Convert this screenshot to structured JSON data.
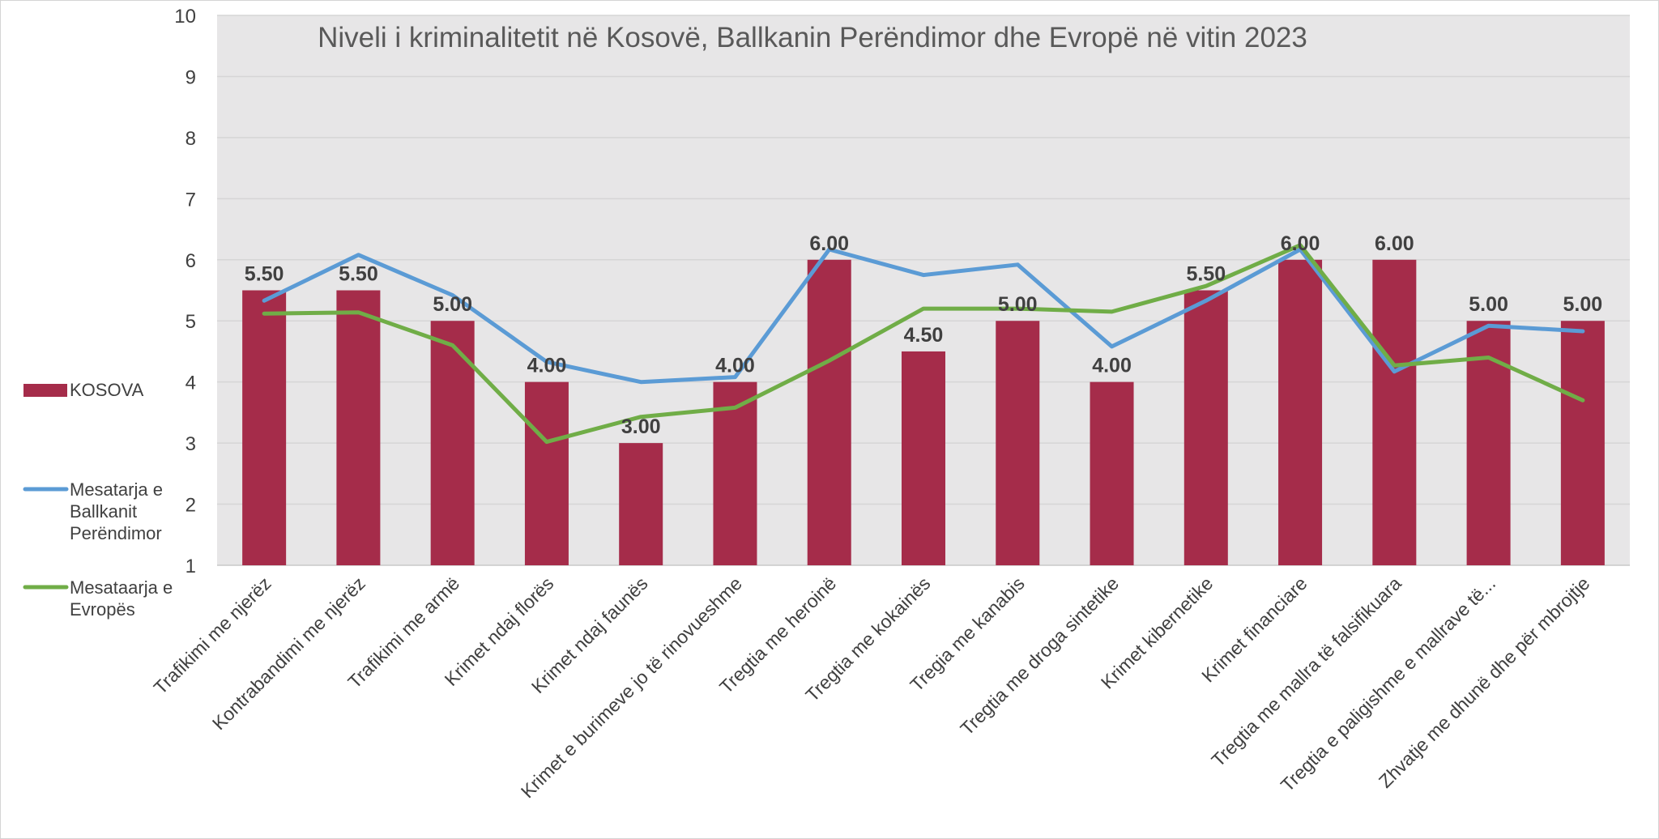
{
  "chart_data": {
    "type": "bar",
    "title": "Niveli i kriminalitetit në Kosovë, Ballkanin Perëndimor dhe Evropë në vitin 2023",
    "xlabel": "",
    "ylabel": "",
    "ylim": [
      1,
      10
    ],
    "yticks": [
      1,
      2,
      3,
      4,
      5,
      6,
      7,
      8,
      9,
      10
    ],
    "grid": true,
    "legend_position": "left",
    "categories": [
      "Trafikimi me njerëz",
      "Kontrabandimi me njerëz",
      "Trafikimi me armë",
      "Krimet ndaj florës",
      "Krimet ndaj faunës",
      "Krimet e burimeve jo të rinovueshme",
      "Tregtia me heroinë",
      "Tregtia me kokainës",
      "Tregia me kanabis",
      "Tregtia me droga sintetike",
      "Krimet kibernetike",
      "Krimet financiare",
      "Tregtia me mallra të falsifikuara",
      "Tregtia e paligishme e mallrave të...",
      "Zhvatje me dhunë dhe për mbrojtje"
    ],
    "series": [
      {
        "name": "KOSOVA",
        "type": "bar",
        "color": "#a52c4a",
        "values": [
          5.5,
          5.5,
          5.0,
          4.0,
          3.0,
          4.0,
          6.0,
          4.5,
          5.0,
          4.0,
          5.5,
          6.0,
          6.0,
          5.0,
          5.0
        ],
        "labels": [
          "5.50",
          "5.50",
          "5.00",
          "4.00",
          "3.00",
          "4.00",
          "6.00",
          "4.50",
          "5.00",
          "4.00",
          "5.50",
          "6.00",
          "6.00",
          "5.00",
          "5.00"
        ]
      },
      {
        "name": "Mesatarja e Ballkanit Perëndimor",
        "legend_lines": [
          "Mesatarja e",
          "Ballkanit",
          "Perëndimor"
        ],
        "type": "line",
        "color": "#5b9bd5",
        "values": [
          5.33,
          6.08,
          5.42,
          4.33,
          4.0,
          4.08,
          6.17,
          5.75,
          5.92,
          4.58,
          5.33,
          6.17,
          4.17,
          4.92,
          4.83
        ]
      },
      {
        "name": "Mesataarja e Evropës",
        "legend_lines": [
          "Mesataarja e",
          "Evropës"
        ],
        "type": "line",
        "color": "#70ad47",
        "values": [
          5.12,
          5.14,
          4.6,
          3.02,
          3.43,
          3.58,
          4.35,
          5.2,
          5.2,
          5.15,
          5.57,
          6.24,
          4.27,
          4.4,
          3.7
        ]
      }
    ]
  }
}
